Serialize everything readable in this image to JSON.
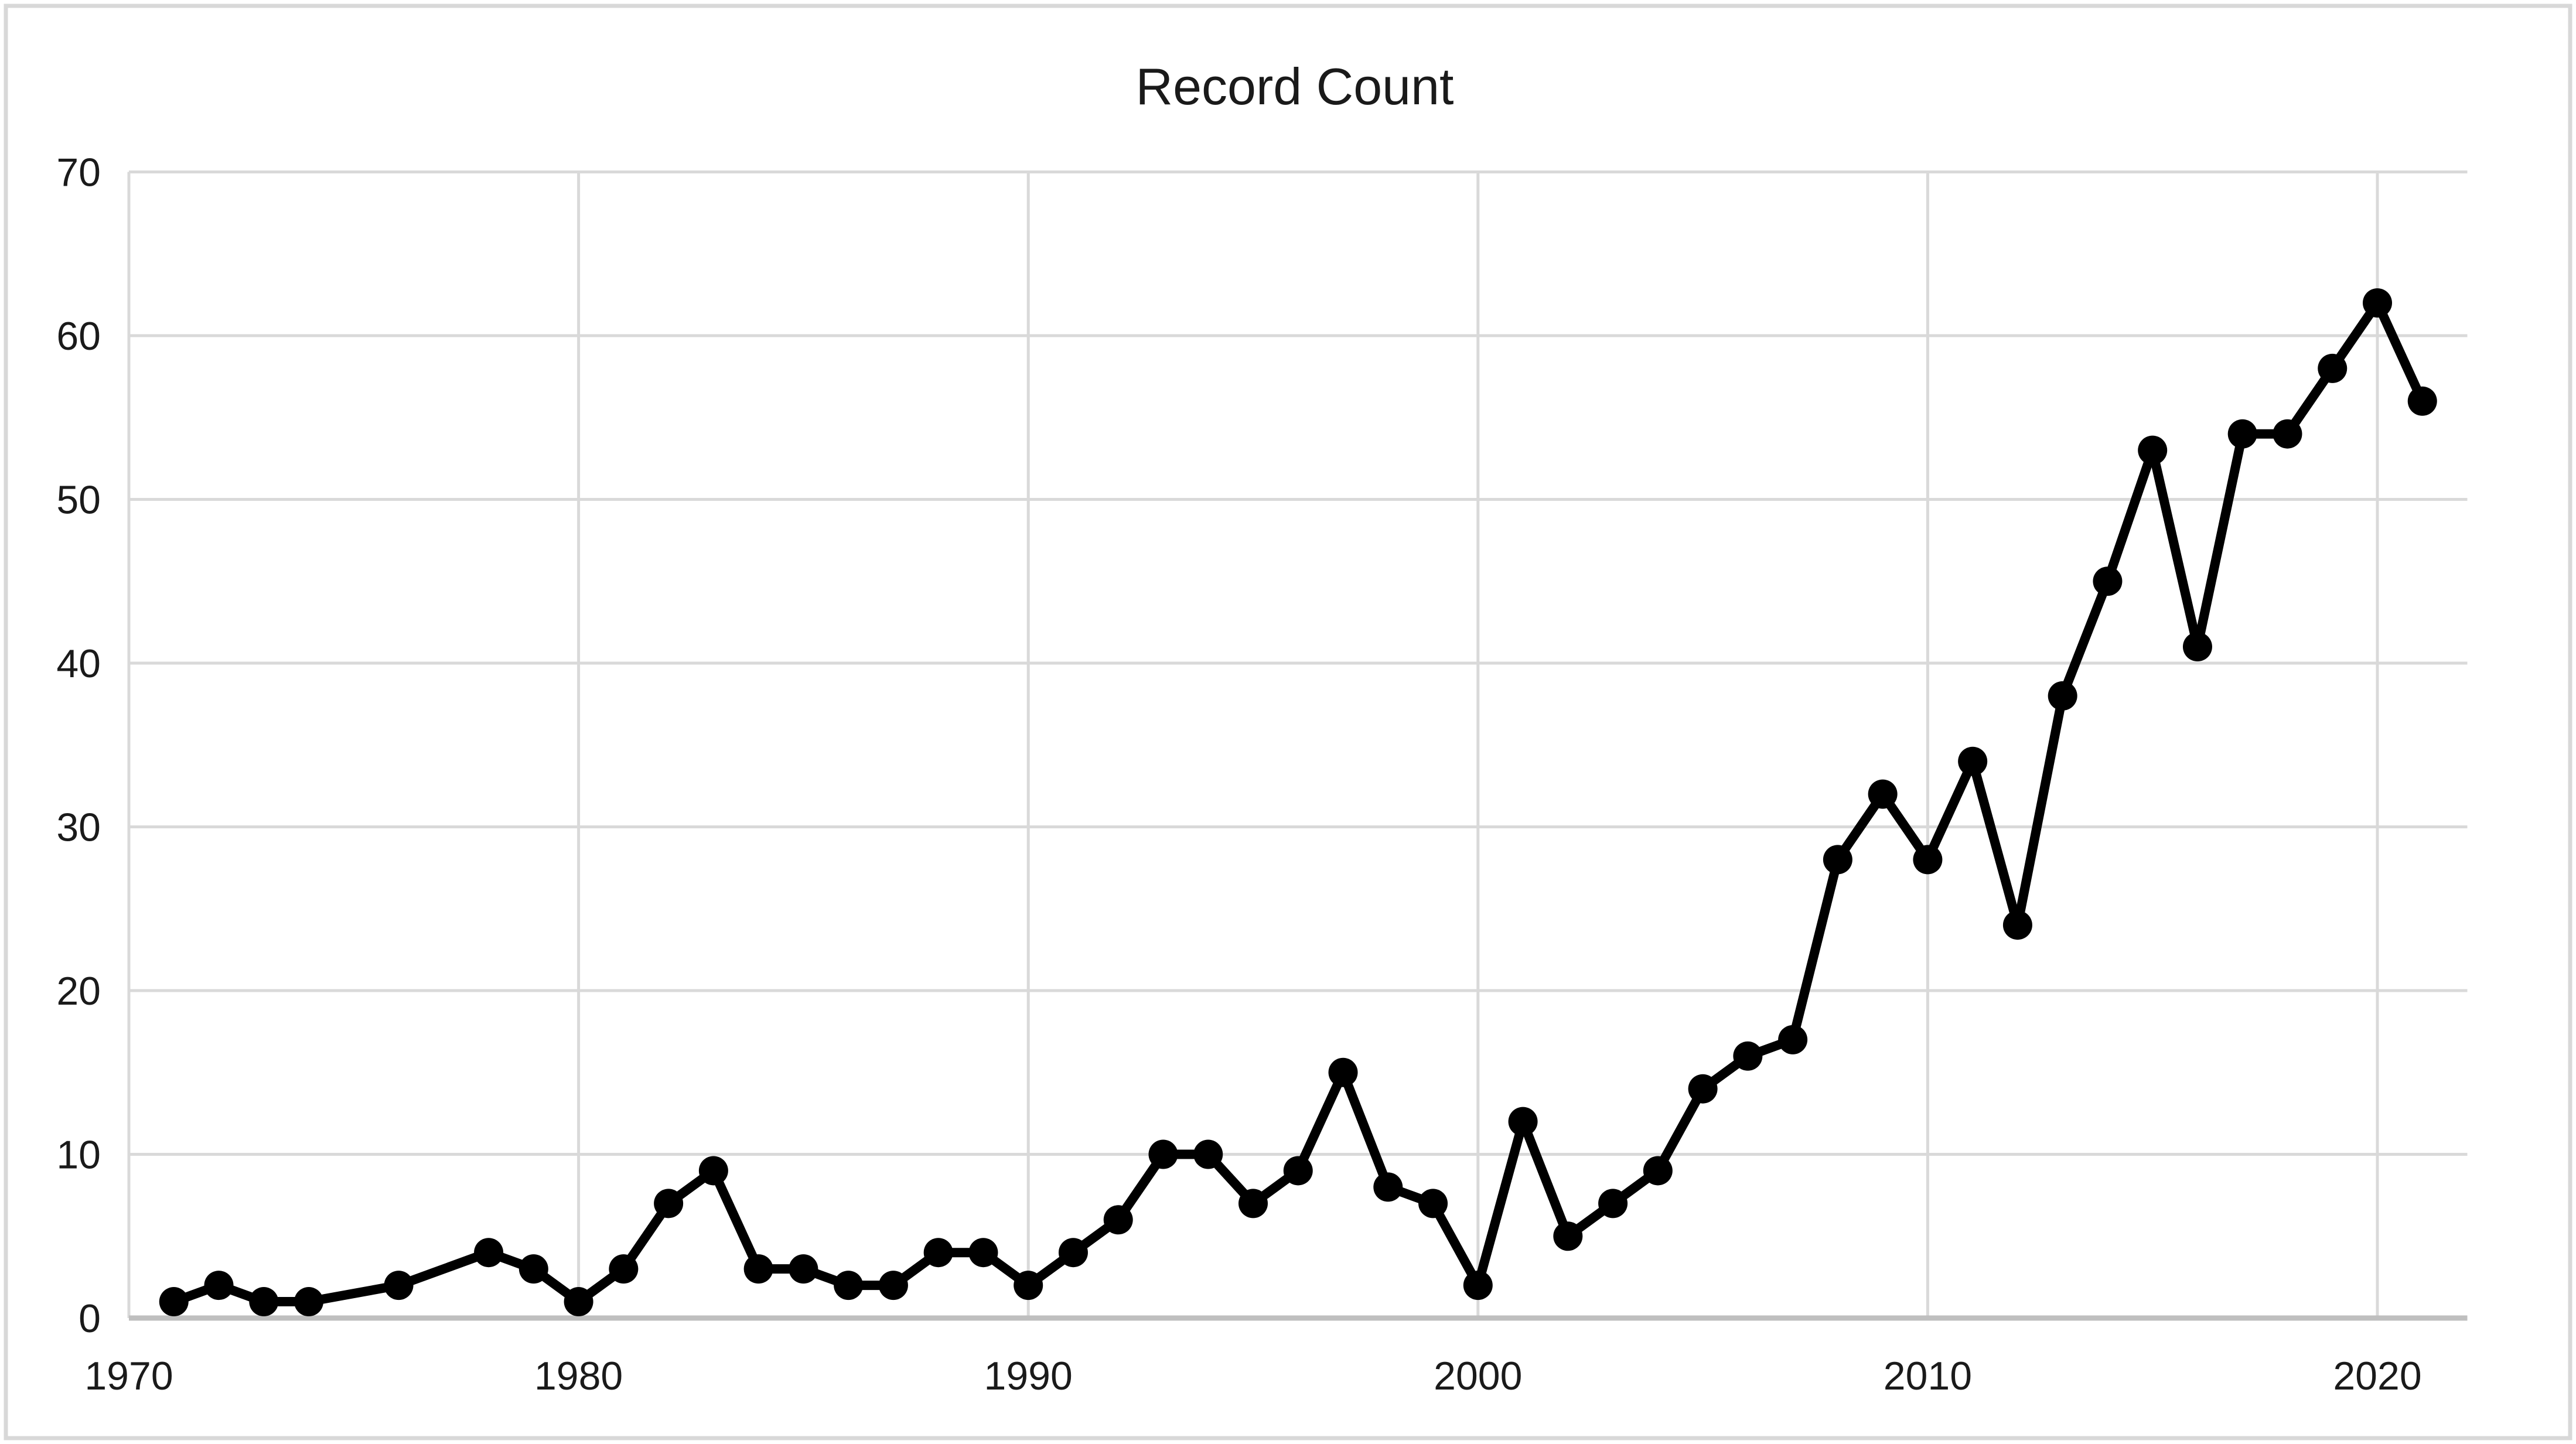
{
  "frame": {
    "background": "#ffffff",
    "border_color": "#d8d8d8"
  },
  "chart_data": {
    "type": "line",
    "title": "Record Count",
    "xlabel": "",
    "ylabel": "",
    "legend": false,
    "grid": true,
    "x_axis": {
      "ticks": [
        1970,
        1980,
        1990,
        2000,
        2010,
        2020
      ],
      "tick_labels": [
        "1970",
        "1980",
        "1990",
        "2000",
        "2010",
        "2020"
      ],
      "min": 1970,
      "max": 2022
    },
    "y_axis": {
      "ticks": [
        0,
        10,
        20,
        30,
        40,
        50,
        60,
        70
      ],
      "tick_labels": [
        "0",
        "10",
        "20",
        "30",
        "40",
        "50",
        "60",
        "70"
      ],
      "min": 0,
      "max": 70
    },
    "style": {
      "line_color": "#000000",
      "marker": "filled-circle",
      "gridline_color": "#d9d9d9",
      "axis_line_color": "#bfbfbf",
      "text_color": "#1a1a1a"
    },
    "series": [
      {
        "name": "Record Count",
        "points": [
          [
            1971,
            1
          ],
          [
            1972,
            2
          ],
          [
            1973,
            1
          ],
          [
            1974,
            1
          ],
          [
            1976,
            2
          ],
          [
            1978,
            4
          ],
          [
            1979,
            3
          ],
          [
            1980,
            1
          ],
          [
            1981,
            3
          ],
          [
            1982,
            7
          ],
          [
            1983,
            9
          ],
          [
            1984,
            3
          ],
          [
            1985,
            3
          ],
          [
            1986,
            2
          ],
          [
            1987,
            2
          ],
          [
            1988,
            4
          ],
          [
            1989,
            4
          ],
          [
            1990,
            2
          ],
          [
            1991,
            4
          ],
          [
            1992,
            6
          ],
          [
            1993,
            10
          ],
          [
            1994,
            10
          ],
          [
            1995,
            7
          ],
          [
            1996,
            9
          ],
          [
            1997,
            15
          ],
          [
            1998,
            8
          ],
          [
            1999,
            7
          ],
          [
            2000,
            2
          ],
          [
            2001,
            12
          ],
          [
            2002,
            5
          ],
          [
            2003,
            7
          ],
          [
            2004,
            9
          ],
          [
            2005,
            14
          ],
          [
            2006,
            16
          ],
          [
            2007,
            17
          ],
          [
            2008,
            28
          ],
          [
            2009,
            32
          ],
          [
            2010,
            28
          ],
          [
            2011,
            34
          ],
          [
            2012,
            24
          ],
          [
            2013,
            38
          ],
          [
            2014,
            45
          ],
          [
            2015,
            53
          ],
          [
            2016,
            41
          ],
          [
            2017,
            54
          ],
          [
            2018,
            54
          ],
          [
            2019,
            58
          ],
          [
            2020,
            62
          ],
          [
            2021,
            56
          ]
        ]
      }
    ]
  }
}
